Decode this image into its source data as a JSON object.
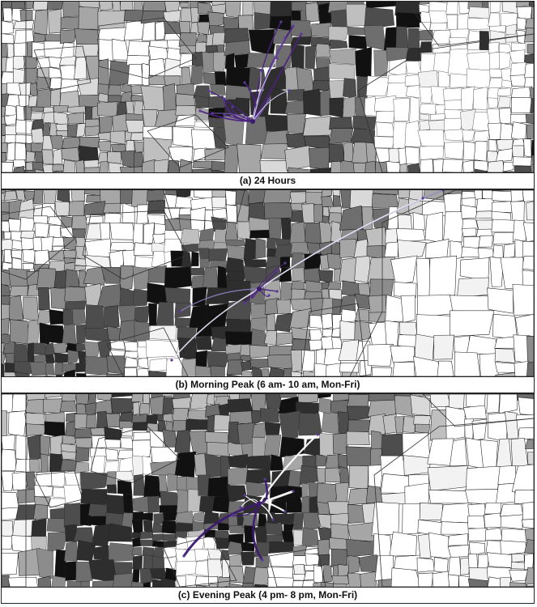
{
  "panels": [
    {
      "id": "a",
      "caption": "(a)  24 Hours",
      "flow_colors": [
        "#4b2380",
        "#6d55a8",
        "#d8d3ea"
      ],
      "hub": "purple"
    },
    {
      "id": "b",
      "caption": "(b)  Morning Peak (6 am- 10 am, Mon-Fri)",
      "flow_colors": [
        "#4b2380",
        "#8f84c4",
        "#e6e3f3"
      ],
      "hub": "purple"
    },
    {
      "id": "c",
      "caption": "(c)  Evening Peak (4 pm- 8 pm, Mon-Fri)",
      "flow_colors": [
        "#3b1a70",
        "#ffffff"
      ],
      "hub": "purple"
    }
  ],
  "palette": {
    "shades": [
      "#ffffff",
      "#f2f2f2",
      "#d9d9d9",
      "#bfbfbf",
      "#a6a6a6",
      "#8c8c8c",
      "#6e6e6e",
      "#4d4d4d",
      "#2e2e2e",
      "#111111"
    ],
    "border": "#222222"
  }
}
